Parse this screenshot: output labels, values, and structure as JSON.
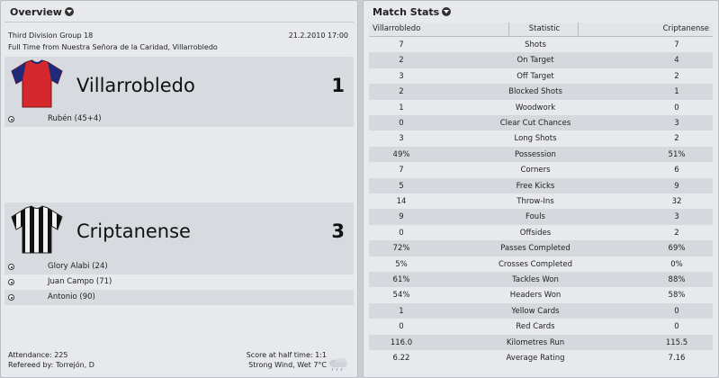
{
  "overview": {
    "title": "Overview",
    "competition": "Third Division Group 18",
    "date": "21.2.2010 17:00",
    "venue_line": "Full Time from Nuestra Señora de la Caridad, Villarrobledo",
    "home": {
      "name": "Villarrobledo",
      "score": "1",
      "shirt_colors": {
        "body": "#d4282c",
        "sleeves": "#1f2a7a"
      },
      "scorers": [
        "Rubén (45+4)"
      ]
    },
    "away": {
      "name": "Criptanense",
      "score": "3",
      "shirt_colors": {
        "stripe_a": "#111111",
        "stripe_b": "#f2f2f2"
      },
      "scorers": [
        "Glory Alabi (24)",
        "Juan Campo (71)",
        "Antonio (90)"
      ]
    },
    "attendance": "Attendance: 225",
    "referee": "Refereed by: Torrejón, D",
    "halftime": "Score at half time: 1:1",
    "weather": "Strong Wind, Wet 7°C",
    "icons": {
      "scorer": "football-icon",
      "weather": "rain-cloud-icon",
      "expand": "chevron-down-icon"
    }
  },
  "match_stats": {
    "title": "Match Stats",
    "headers": {
      "home": "Villarrobledo",
      "stat": "Statistic",
      "away": "Criptanense"
    },
    "rows": [
      {
        "home": "7",
        "label": "Shots",
        "away": "7"
      },
      {
        "home": "2",
        "label": "On Target",
        "away": "4"
      },
      {
        "home": "3",
        "label": "Off Target",
        "away": "2"
      },
      {
        "home": "2",
        "label": "Blocked Shots",
        "away": "1"
      },
      {
        "home": "1",
        "label": "Woodwork",
        "away": "0"
      },
      {
        "home": "0",
        "label": "Clear Cut Chances",
        "away": "3"
      },
      {
        "home": "3",
        "label": "Long Shots",
        "away": "2"
      },
      {
        "home": "49%",
        "label": "Possession",
        "away": "51%"
      },
      {
        "home": "7",
        "label": "Corners",
        "away": "6"
      },
      {
        "home": "5",
        "label": "Free Kicks",
        "away": "9"
      },
      {
        "home": "14",
        "label": "Throw-Ins",
        "away": "32"
      },
      {
        "home": "9",
        "label": "Fouls",
        "away": "3"
      },
      {
        "home": "0",
        "label": "Offsides",
        "away": "2"
      },
      {
        "home": "72%",
        "label": "Passes Completed",
        "away": "69%"
      },
      {
        "home": "5%",
        "label": "Crosses Completed",
        "away": "0%"
      },
      {
        "home": "61%",
        "label": "Tackles Won",
        "away": "88%"
      },
      {
        "home": "54%",
        "label": "Headers Won",
        "away": "58%"
      },
      {
        "home": "1",
        "label": "Yellow Cards",
        "away": "0"
      },
      {
        "home": "0",
        "label": "Red Cards",
        "away": "0"
      },
      {
        "home": "116.0",
        "label": "Kilometres Run",
        "away": "115.5"
      },
      {
        "home": "6.22",
        "label": "Average Rating",
        "away": "7.16"
      }
    ]
  }
}
